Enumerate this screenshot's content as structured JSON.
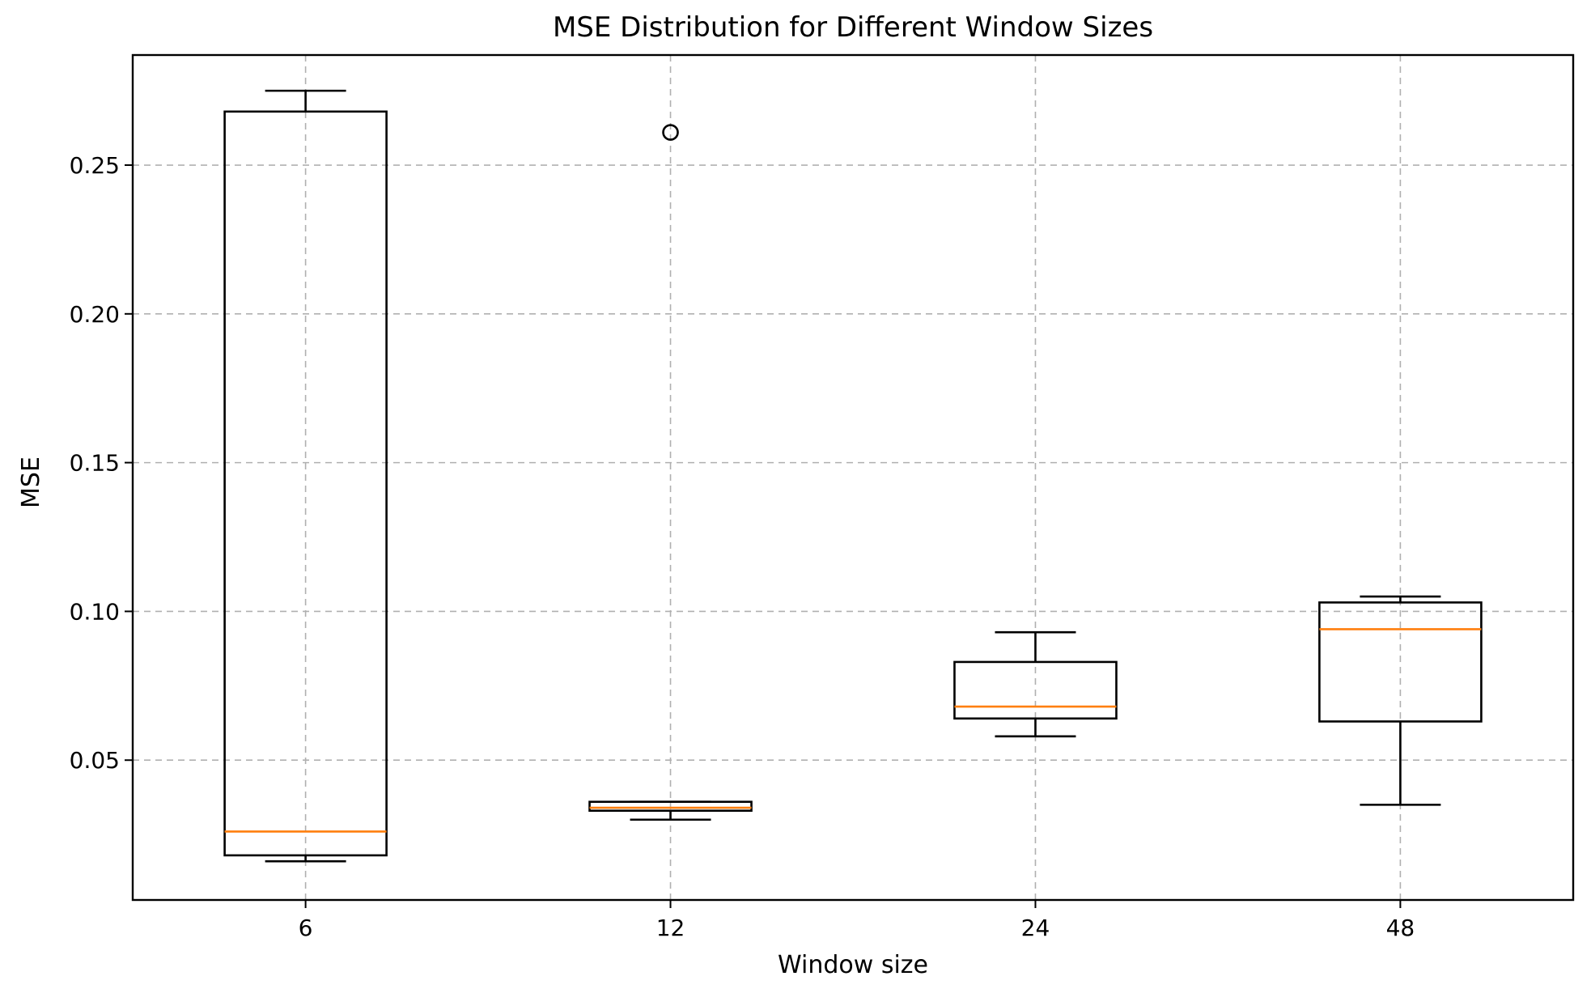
{
  "chart_data": {
    "type": "box",
    "title": "MSE Distribution for Different Window Sizes",
    "xlabel": "Window size",
    "ylabel": "MSE",
    "categories": [
      "6",
      "12",
      "24",
      "48"
    ],
    "ylim": [
      0.003,
      0.287
    ],
    "yticks": [
      0.05,
      0.1,
      0.15,
      0.2,
      0.25
    ],
    "ytick_labels": [
      "0.05",
      "0.10",
      "0.15",
      "0.20",
      "0.25"
    ],
    "grid": true,
    "boxes": [
      {
        "category": "6",
        "whisker_low": 0.016,
        "q1": 0.018,
        "median": 0.026,
        "q3": 0.268,
        "whisker_high": 0.275,
        "outliers": []
      },
      {
        "category": "12",
        "whisker_low": 0.03,
        "q1": 0.033,
        "median": 0.034,
        "q3": 0.036,
        "whisker_high": 0.036,
        "outliers": [
          0.261
        ]
      },
      {
        "category": "24",
        "whisker_low": 0.058,
        "q1": 0.064,
        "median": 0.068,
        "q3": 0.083,
        "whisker_high": 0.093,
        "outliers": []
      },
      {
        "category": "48",
        "whisker_low": 0.035,
        "q1": 0.063,
        "median": 0.094,
        "q3": 0.103,
        "whisker_high": 0.105,
        "outliers": []
      }
    ],
    "colors": {
      "box": "#000000",
      "median": "#ff7f0e",
      "grid": "#b0b0b0"
    }
  }
}
